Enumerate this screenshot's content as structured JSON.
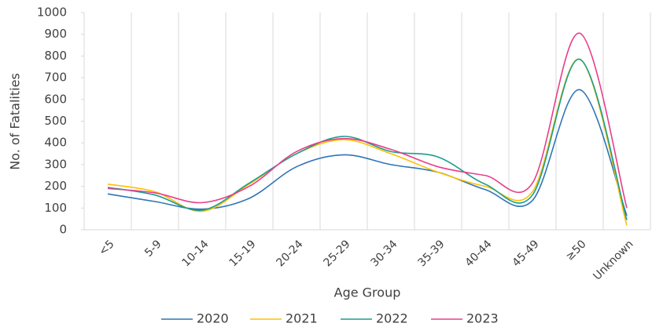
{
  "chart_data": {
    "type": "line",
    "xlabel": "Age Group",
    "ylabel": "No. of Fatalities",
    "categories": [
      "<5",
      "5-9",
      "10-14",
      "15-19",
      "20-24",
      "25-29",
      "30-34",
      "35-39",
      "40-44",
      "45-49",
      "≥50",
      "Unknown"
    ],
    "series": [
      {
        "name": "2020",
        "color": "#2e75b6",
        "values": [
          165,
          130,
          95,
          145,
          290,
          345,
          300,
          265,
          185,
          135,
          645,
          65
        ]
      },
      {
        "name": "2021",
        "color": "#ffc000",
        "values": [
          210,
          175,
          85,
          210,
          350,
          415,
          350,
          265,
          200,
          175,
          785,
          20
        ]
      },
      {
        "name": "2022",
        "color": "#1a9e8f",
        "values": [
          195,
          160,
          90,
          215,
          350,
          430,
          360,
          335,
          210,
          160,
          785,
          45
        ]
      },
      {
        "name": "2023",
        "color": "#e83e8c",
        "values": [
          190,
          170,
          125,
          200,
          360,
          420,
          370,
          290,
          250,
          215,
          905,
          100
        ]
      }
    ],
    "ylim": [
      0,
      1000
    ],
    "yticks": [
      0,
      100,
      200,
      300,
      400,
      500,
      600,
      700,
      800,
      900,
      1000
    ],
    "smooth": true,
    "legend": "bottom"
  }
}
